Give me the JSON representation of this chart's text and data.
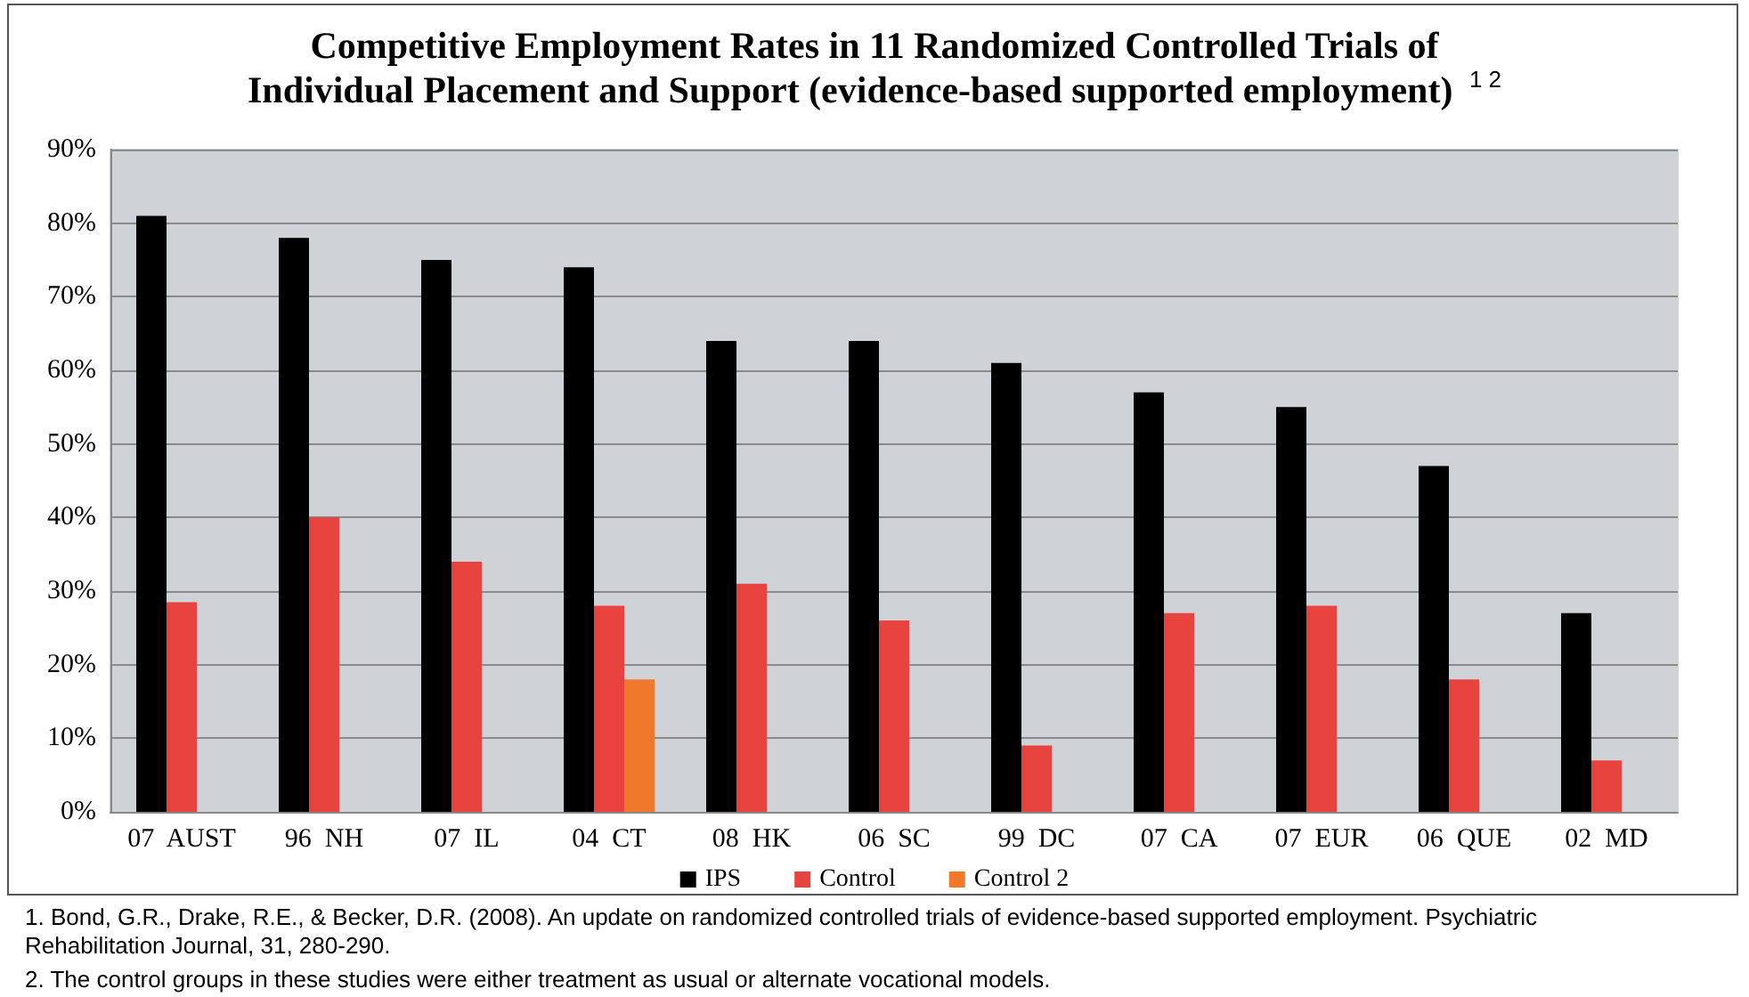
{
  "chart_data": {
    "type": "bar",
    "title": "Competitive Employment Rates in 11 Randomized Controlled Trials of\nIndividual Placement and Support (evidence-based supported employment) $^{1 2}$",
    "categories": [
      "07  AUST",
      "96  NH",
      "07  IL",
      "04  CT",
      "08  HK",
      "06  SC",
      "99  DC",
      "07  CA",
      "07  EUR",
      "06  QUE",
      "02  MD"
    ],
    "series": [
      {
        "name": "IPS",
        "color": "#000000",
        "values": [
          81,
          78,
          75,
          74,
          64,
          64,
          61,
          57,
          55,
          47,
          27
        ]
      },
      {
        "name": "Control",
        "color": "#e8433f",
        "values": [
          28.5,
          40,
          34,
          28,
          31,
          26,
          9,
          27,
          28,
          18,
          7
        ]
      },
      {
        "name": "Control 2",
        "color": "#f0782a",
        "values": [
          null,
          null,
          null,
          18,
          null,
          null,
          null,
          null,
          null,
          null,
          null
        ]
      }
    ],
    "ylim": [
      0,
      90
    ],
    "yticks": [
      {
        "value": 0,
        "label": "0%"
      },
      {
        "value": 10,
        "label": "10%"
      },
      {
        "value": 20,
        "label": "20%"
      },
      {
        "value": 30,
        "label": "30%"
      },
      {
        "value": 40,
        "label": "40%"
      },
      {
        "value": 50,
        "label": "50%"
      },
      {
        "value": 60,
        "label": "60%"
      },
      {
        "value": 70,
        "label": "70%"
      },
      {
        "value": 80,
        "label": "80%"
      },
      {
        "value": 90,
        "label": "90%"
      }
    ],
    "grid": "y",
    "legend": "bottom",
    "annotations": [
      "1. Bond, G.R., Drake, R.E., & Becker, D.R. (2008). An update on randomized controlled trials of evidence-based supported employment. Psychiatric Rehabilitation Journal, 31, 280-290.",
      "2. The control groups in these studies were either treatment as usual or alternate vocational models."
    ]
  }
}
